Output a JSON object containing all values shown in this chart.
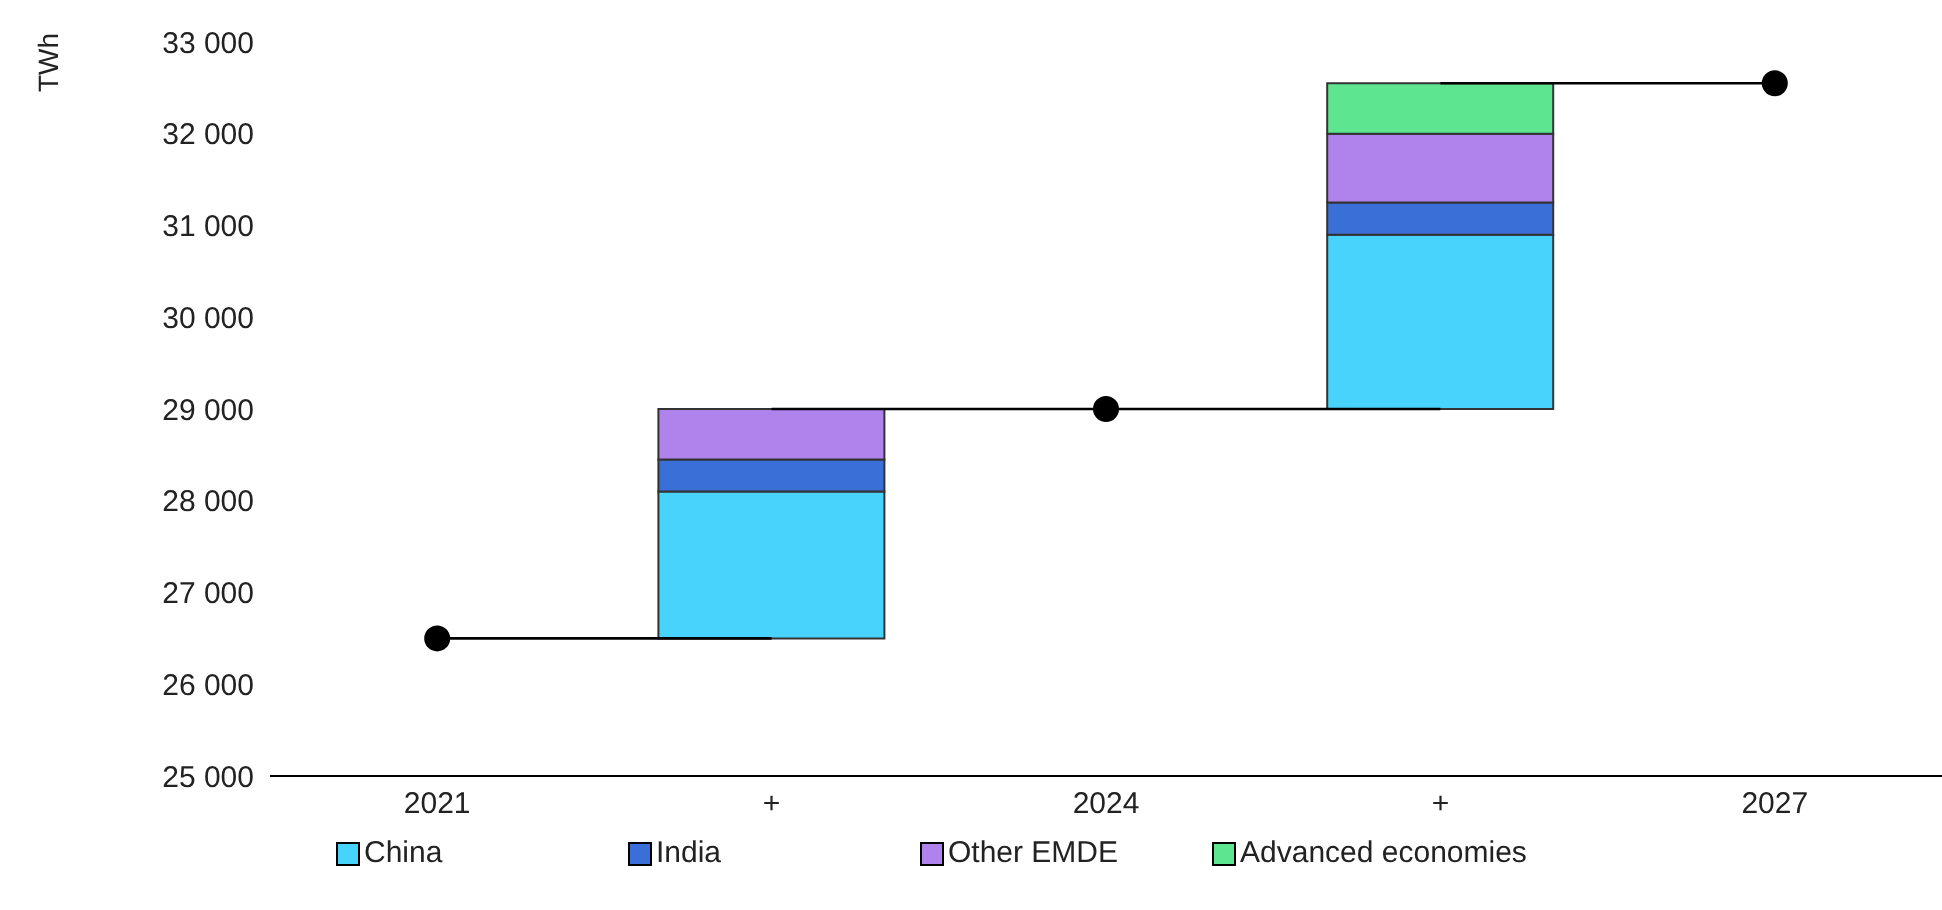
{
  "chart_data": {
    "type": "bar",
    "ylabel": "TWh",
    "categories": [
      "2021",
      "+",
      "2024",
      "+",
      "2027"
    ],
    "series": [
      {
        "name": "China",
        "color": "#47d3fb",
        "base": [
          null,
          26500,
          null,
          29000,
          null
        ],
        "values": [
          null,
          1600,
          null,
          1900,
          null
        ]
      },
      {
        "name": "India",
        "color": "#3a6fd8",
        "base": [
          null,
          28100,
          null,
          30900,
          null
        ],
        "values": [
          null,
          350,
          null,
          350,
          null
        ]
      },
      {
        "name": "Other EMDE",
        "color": "#b083ec",
        "base": [
          null,
          28450,
          null,
          31250,
          null
        ],
        "values": [
          null,
          550,
          null,
          750,
          null
        ]
      },
      {
        "name": "Advanced economies",
        "color": "#5de68f",
        "base": [
          null,
          null,
          null,
          32000,
          null
        ],
        "values": [
          null,
          null,
          null,
          550,
          null
        ]
      },
      {
        "type": "line",
        "color": "#000000",
        "values": [
          26500,
          26500,
          null,
          null,
          null
        ]
      },
      {
        "type": "line",
        "color": "#000000",
        "values": [
          null,
          29000,
          29000,
          29000,
          null
        ]
      },
      {
        "type": "line",
        "color": "#000000",
        "values": [
          null,
          null,
          null,
          32550,
          32550
        ]
      },
      {
        "type": "scatter",
        "color": "#000000",
        "marker": "circle",
        "values": [
          26500,
          null,
          29000,
          null,
          32550
        ]
      }
    ],
    "ylim": [
      25000,
      33000
    ],
    "yticks": [
      {
        "value": 25000,
        "label": "25 000"
      },
      {
        "value": 26000,
        "label": "26 000"
      },
      {
        "value": 27000,
        "label": "27 000"
      },
      {
        "value": 28000,
        "label": "28 000"
      },
      {
        "value": 29000,
        "label": "29 000"
      },
      {
        "value": 30000,
        "label": "30 000"
      },
      {
        "value": 31000,
        "label": "31 000"
      },
      {
        "value": 32000,
        "label": "32 000"
      },
      {
        "value": 33000,
        "label": "33 000"
      }
    ],
    "legend": "bottom"
  }
}
